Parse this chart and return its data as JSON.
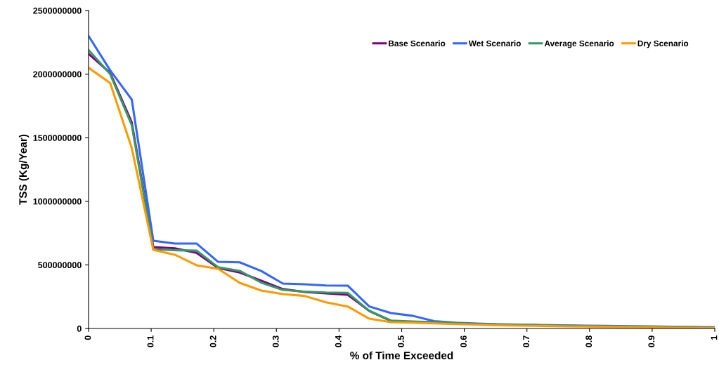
{
  "chart_data": {
    "type": "line",
    "xlabel": "% of Time Exceeded",
    "ylabel": "TSS (Kg/Year)",
    "x": [
      0,
      0.0345,
      0.069,
      0.1034,
      0.1379,
      0.1724,
      0.2069,
      0.2414,
      0.2759,
      0.3103,
      0.3448,
      0.3793,
      0.4138,
      0.4483,
      0.4828,
      0.5172,
      0.5517,
      0.5862,
      0.6207,
      0.6552,
      0.6897,
      0.7241,
      0.7586,
      0.7931,
      0.8276,
      0.8621,
      0.8966,
      0.931,
      0.9655,
      1
    ],
    "series": [
      {
        "name": "Base Scenario",
        "color": "#800080",
        "values": [
          2160000000,
          2010000000,
          1620000000,
          640000000,
          630000000,
          595000000,
          476000000,
          440000000,
          375000000,
          310000000,
          287000000,
          276000000,
          265000000,
          138000000,
          60000000,
          null,
          null,
          null,
          null,
          null,
          null,
          null,
          null,
          null,
          null,
          null,
          null,
          null,
          null,
          null
        ]
      },
      {
        "name": "Wet Scenario",
        "color": "#3366ff",
        "values": [
          2300000000,
          2030000000,
          1800000000,
          690000000,
          668000000,
          668000000,
          524000000,
          520000000,
          452000000,
          353000000,
          348000000,
          338000000,
          337000000,
          173000000,
          121000000,
          100000000,
          58000000,
          45000000,
          38000000,
          33000000,
          30000000,
          28000000,
          25000000,
          22000000,
          20000000,
          18000000,
          16000000,
          14000000,
          12000000,
          9000000
        ]
      },
      {
        "name": "Average Scenario",
        "color": "#339966",
        "values": [
          2190000000,
          2000000000,
          1600000000,
          624000000,
          615000000,
          613000000,
          482000000,
          453000000,
          360000000,
          303000000,
          290000000,
          283000000,
          280000000,
          138000000,
          62000000,
          55000000,
          50000000,
          42000000,
          35000000,
          30000000,
          27000000,
          25000000,
          22000000,
          19000000,
          17000000,
          15000000,
          13000000,
          11000000,
          9000000,
          6000000
        ]
      },
      {
        "name": "Dry Scenario",
        "color": "#ff9900",
        "values": [
          2050000000,
          1930000000,
          1420000000,
          618000000,
          580000000,
          497000000,
          469000000,
          359000000,
          298000000,
          270000000,
          256000000,
          206000000,
          173000000,
          77000000,
          50000000,
          45000000,
          40000000,
          35000000,
          30000000,
          25000000,
          22000000,
          20000000,
          17000000,
          15000000,
          13000000,
          11000000,
          9000000,
          7000000,
          5000000,
          3000000
        ]
      }
    ],
    "xlim": [
      0,
      1
    ],
    "ylim": [
      0,
      2500000000
    ],
    "xticks": [
      0,
      0.1,
      0.2,
      0.3,
      0.4,
      0.5,
      0.6,
      0.7,
      0.8,
      0.9,
      1
    ],
    "yticks": [
      0,
      500000000,
      1000000000,
      1500000000,
      2000000000,
      2500000000
    ],
    "grid": false,
    "legend": "top right",
    "marker": "none",
    "line_style": "solid"
  }
}
